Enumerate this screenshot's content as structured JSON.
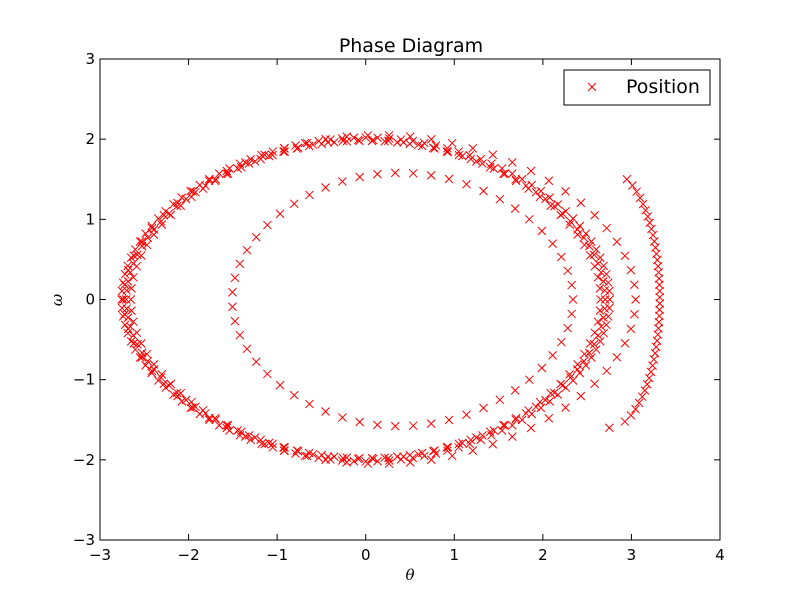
{
  "chart_data": {
    "type": "scatter",
    "title": "Phase Diagram",
    "xlabel": "θ",
    "ylabel": "ω",
    "xlim": [
      -3,
      4
    ],
    "ylim": [
      -3,
      3
    ],
    "xticks": [
      "−3",
      "−2",
      "−1",
      "0",
      "1",
      "2",
      "3",
      "4"
    ],
    "yticks": [
      "3",
      "2",
      "1",
      "0",
      "−1",
      "−2",
      "−3"
    ],
    "grid": false,
    "legend_position": "top-right",
    "marker": "x",
    "color": "#ff0000",
    "series": [
      {
        "name": "Position",
        "loops": [
          {
            "a": 2.65,
            "b": 2.02,
            "c": 0.0,
            "n": 120
          },
          {
            "a": 2.6,
            "b": 1.98,
            "c": 0.0,
            "n": 110
          },
          {
            "a": 2.55,
            "b": 1.99,
            "c": 0.0,
            "n": 90
          },
          {
            "a": 2.78,
            "b": 2.05,
            "c": 0.15,
            "n": 70
          },
          {
            "a": 1.85,
            "b": 1.58,
            "c": 0.4,
            "n": 55
          }
        ],
        "bulge": {
          "from": 2.75,
          "to": 3.32,
          "y_range": [
            -1.6,
            1.5
          ]
        }
      }
    ]
  }
}
